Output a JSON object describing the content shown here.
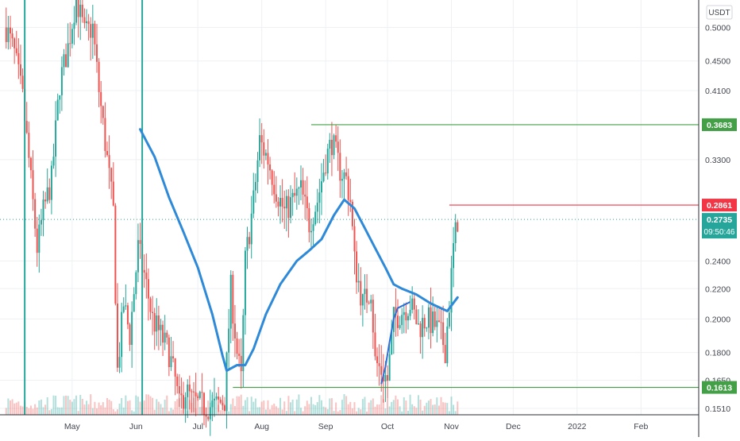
{
  "chart_data": {
    "type": "candlestick",
    "currency": "USDT",
    "y_axis": {
      "scale": "log",
      "ticks": [
        "0.5000",
        "0.4500",
        "0.4100",
        "0.3300",
        "0.2400",
        "0.2200",
        "0.2000",
        "0.1800",
        "0.1650",
        "0.1510"
      ],
      "range": [
        0.148,
        0.545
      ]
    },
    "x_axis": {
      "ticks": [
        "May",
        "Jun",
        "Jul",
        "Aug",
        "Sep",
        "Oct",
        "Nov",
        "Dec",
        "2022",
        "Feb"
      ]
    },
    "last_price": "0.2735",
    "countdown": "09:50:46",
    "horizontal_lines": [
      {
        "label": "0.3683",
        "value": 0.3683,
        "color": "#43a047",
        "from": "2021-08-25"
      },
      {
        "label": "0.2861",
        "value": 0.2861,
        "color": "#f23645",
        "from": "2021-10-31"
      },
      {
        "label": "0.1613",
        "value": 0.1613,
        "color": "#43a047",
        "from": "2021-07-18"
      }
    ],
    "vertical_markers": [
      {
        "date": "2021-04-08",
        "color": "#26a69a"
      },
      {
        "date": "2021-06-04",
        "color": "#26a69a"
      }
    ],
    "moving_average": {
      "color": "#2e8ad8",
      "points": [
        [
          "2021-06-03",
          0.363
        ],
        [
          "2021-06-10",
          0.333
        ],
        [
          "2021-06-17",
          0.293
        ],
        [
          "2021-06-24",
          0.263
        ],
        [
          "2021-07-01",
          0.235
        ],
        [
          "2021-07-08",
          0.203
        ],
        [
          "2021-07-13",
          0.178
        ],
        [
          "2021-07-15",
          0.17
        ],
        [
          "2021-07-20",
          0.173
        ],
        [
          "2021-07-24",
          0.173
        ],
        [
          "2021-07-28",
          0.182
        ],
        [
          "2021-08-03",
          0.203
        ],
        [
          "2021-08-10",
          0.223
        ],
        [
          "2021-08-18",
          0.24
        ],
        [
          "2021-08-24",
          0.248
        ],
        [
          "2021-08-30",
          0.257
        ],
        [
          "2021-09-05",
          0.277
        ],
        [
          "2021-09-10",
          0.291
        ],
        [
          "2021-09-15",
          0.283
        ],
        [
          "2021-09-20",
          0.266
        ],
        [
          "2021-09-25",
          0.25
        ],
        [
          "2021-09-30",
          0.235
        ],
        [
          "2021-10-04",
          0.223
        ],
        [
          "2021-10-08",
          0.22
        ],
        [
          "2021-10-15",
          0.216
        ],
        [
          "2021-10-22",
          0.21
        ],
        [
          "2021-10-30",
          0.205
        ],
        [
          "2021-11-04",
          0.214
        ]
      ]
    },
    "short_average": {
      "color": "#2e6fd8",
      "points": [
        [
          "2021-09-28",
          0.163
        ],
        [
          "2021-09-30",
          0.172
        ],
        [
          "2021-10-02",
          0.186
        ],
        [
          "2021-10-04",
          0.2
        ],
        [
          "2021-10-06",
          0.207
        ],
        [
          "2021-10-09",
          0.209
        ],
        [
          "2021-10-12",
          0.211
        ]
      ]
    },
    "series": [
      {
        "name": "",
        "anchors": [
          [
            "2021-03-30",
            0.5
          ],
          [
            "2021-04-03",
            0.46
          ],
          [
            "2021-04-07",
            0.4
          ],
          [
            "2021-04-10",
            0.33
          ],
          [
            "2021-04-14",
            0.25
          ],
          [
            "2021-04-17",
            0.28
          ],
          [
            "2021-04-21",
            0.31
          ],
          [
            "2021-04-25",
            0.42
          ],
          [
            "2021-04-29",
            0.47
          ],
          [
            "2021-05-03",
            0.55
          ],
          [
            "2021-05-07",
            0.49
          ],
          [
            "2021-05-11",
            0.5
          ],
          [
            "2021-05-14",
            0.41
          ],
          [
            "2021-05-18",
            0.33
          ],
          [
            "2021-05-21",
            0.28
          ],
          [
            "2021-05-23",
            0.17
          ],
          [
            "2021-05-26",
            0.21
          ],
          [
            "2021-05-29",
            0.19
          ],
          [
            "2021-06-02",
            0.25
          ],
          [
            "2021-06-05",
            0.23
          ],
          [
            "2021-06-09",
            0.2
          ],
          [
            "2021-06-13",
            0.19
          ],
          [
            "2021-06-17",
            0.18
          ],
          [
            "2021-06-20",
            0.165
          ],
          [
            "2021-06-22",
            0.152
          ],
          [
            "2021-06-25",
            0.16
          ],
          [
            "2021-06-28",
            0.155
          ],
          [
            "2021-07-01",
            0.153
          ],
          [
            "2021-07-05",
            0.152
          ],
          [
            "2021-07-09",
            0.152
          ],
          [
            "2021-07-14",
            0.155
          ],
          [
            "2021-07-17",
            0.22
          ],
          [
            "2021-07-20",
            0.18
          ],
          [
            "2021-07-22",
            0.165
          ],
          [
            "2021-07-24",
            0.24
          ],
          [
            "2021-07-28",
            0.29
          ],
          [
            "2021-07-31",
            0.35
          ],
          [
            "2021-08-04",
            0.33
          ],
          [
            "2021-08-08",
            0.3
          ],
          [
            "2021-08-12",
            0.28
          ],
          [
            "2021-08-16",
            0.29
          ],
          [
            "2021-08-20",
            0.3
          ],
          [
            "2021-08-24",
            0.27
          ],
          [
            "2021-08-28",
            0.29
          ],
          [
            "2021-09-01",
            0.33
          ],
          [
            "2021-09-04",
            0.35
          ],
          [
            "2021-09-08",
            0.32
          ],
          [
            "2021-09-11",
            0.31
          ],
          [
            "2021-09-13",
            0.29
          ],
          [
            "2021-09-15",
            0.24
          ],
          [
            "2021-09-19",
            0.21
          ],
          [
            "2021-09-23",
            0.22
          ],
          [
            "2021-09-25",
            0.175
          ],
          [
            "2021-09-28",
            0.17
          ],
          [
            "2021-10-01",
            0.165
          ],
          [
            "2021-10-04",
            0.2
          ],
          [
            "2021-10-08",
            0.205
          ],
          [
            "2021-10-12",
            0.21
          ],
          [
            "2021-10-16",
            0.195
          ],
          [
            "2021-10-20",
            0.2
          ],
          [
            "2021-10-24",
            0.196
          ],
          [
            "2021-10-27",
            0.19
          ],
          [
            "2021-10-29",
            0.182
          ],
          [
            "2021-10-31",
            0.21
          ],
          [
            "2021-11-02",
            0.25
          ],
          [
            "2021-11-04",
            0.2735
          ]
        ]
      }
    ]
  }
}
